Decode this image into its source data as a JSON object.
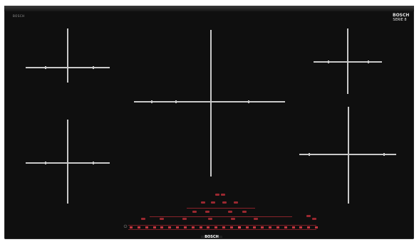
{
  "appliance": {
    "brand_top_right_line1": "BOSCH",
    "brand_top_right_line2": "SERIE 8",
    "brand_bottom": "BOSCH",
    "small_brand_left": "BOSCH"
  },
  "colors": {
    "glass": "#0f0f0f",
    "zone_line": "#c9c9c9",
    "control_red": "#c6353e"
  },
  "controls": {
    "power_symbol": "⏻",
    "slider_steps": 25,
    "selected_step_index": 14
  }
}
